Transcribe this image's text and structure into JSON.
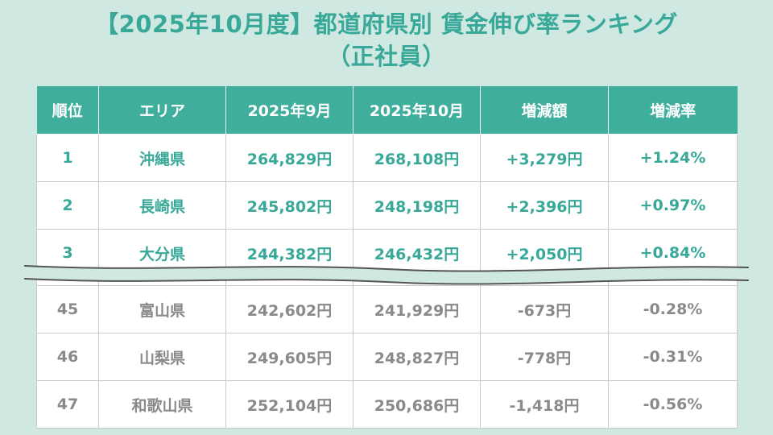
{
  "title": {
    "line1": "【2025年10月度】都道府県別 賃金伸び率ランキング",
    "line2": "（正社員）"
  },
  "table": {
    "headers": [
      "順位",
      "エリア",
      "2025年9月",
      "2025年10月",
      "増減額",
      "増減率"
    ],
    "top_rows": [
      [
        "1",
        "沖縄県",
        "264,829円",
        "268,108円",
        "+3,279円",
        "+1.24%"
      ],
      [
        "2",
        "長崎県",
        "245,802円",
        "248,198円",
        "+2,396円",
        "+0.97%"
      ],
      [
        "3",
        "大分県",
        "244,382円",
        "246,432円",
        "+2,050円",
        "+0.84%"
      ]
    ],
    "bottom_rows": [
      [
        "45",
        "富山県",
        "242,602円",
        "241,929円",
        "-673円",
        "-0.28%"
      ],
      [
        "46",
        "山梨県",
        "249,605円",
        "248,827円",
        "-778円",
        "-0.31%"
      ],
      [
        "47",
        "和歌山県",
        "252,104円",
        "250,686円",
        "-1,418円",
        "-0.56%"
      ]
    ]
  },
  "colors": {
    "background": "#cfe8e2",
    "accent": "#3fae9d",
    "title_text": "#38a898",
    "muted_text": "#8a8a8a"
  }
}
